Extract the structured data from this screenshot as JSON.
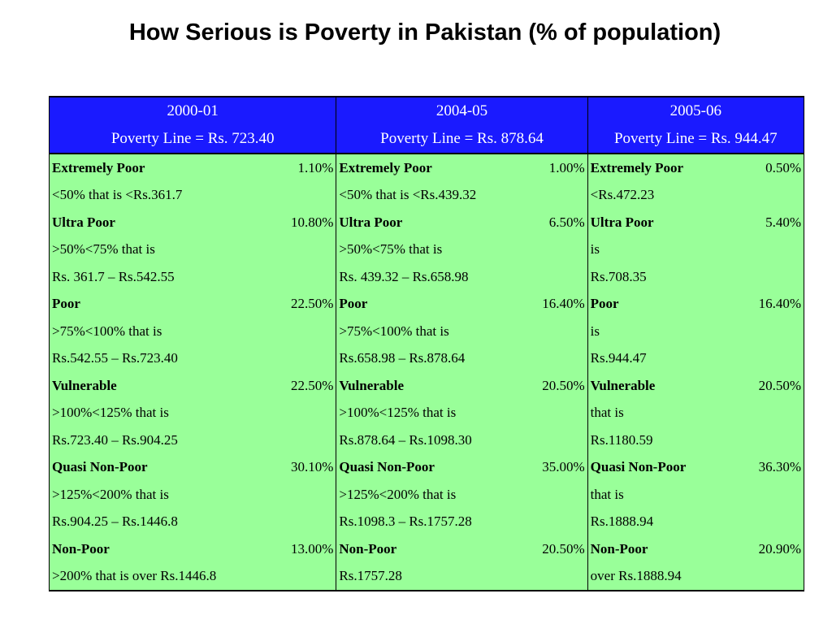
{
  "title": "How Serious is Poverty in Pakistan (% of population)",
  "accent_colors": {
    "header_bg": "#1a1aff",
    "body_bg": "#99ff99"
  },
  "periods": [
    {
      "year": "2000-01",
      "poverty_line": "Poverty Line = Rs. 723.40"
    },
    {
      "year": "2004-05",
      "poverty_line": "Poverty Line = Rs. 878.64"
    },
    {
      "year": "2005-06",
      "poverty_line": "Poverty Line = Rs. 944.47"
    }
  ],
  "rows": [
    {
      "bold": true,
      "cells": [
        {
          "label": "Extremely Poor",
          "pct": "1.10%"
        },
        {
          "label": "Extremely Poor",
          "pct": "1.00%"
        },
        {
          "label": "Extremely Poor",
          "pct": "0.50%"
        }
      ]
    },
    {
      "bold": false,
      "cells": [
        {
          "label": "<50% that is <Rs.361.7",
          "pct": ""
        },
        {
          "label": "<50% that is <Rs.439.32",
          "pct": ""
        },
        {
          "label": "<Rs.472.23",
          "pct": ""
        }
      ]
    },
    {
      "bold": true,
      "cells": [
        {
          "label": "Ultra Poor",
          "pct": "10.80%"
        },
        {
          "label": "Ultra Poor",
          "pct": "6.50%"
        },
        {
          "label": "Ultra Poor",
          "pct": "5.40%"
        }
      ]
    },
    {
      "bold": false,
      "cells": [
        {
          "label": ">50%<75% that is",
          "pct": ""
        },
        {
          "label": ">50%<75% that is",
          "pct": ""
        },
        {
          "label": "is",
          "pct": ""
        }
      ]
    },
    {
      "bold": false,
      "cells": [
        {
          "label": "Rs. 361.7 – Rs.542.55",
          "pct": ""
        },
        {
          "label": "Rs. 439.32 – Rs.658.98",
          "pct": ""
        },
        {
          "label": "Rs.708.35",
          "pct": ""
        }
      ]
    },
    {
      "bold": true,
      "cells": [
        {
          "label": "Poor",
          "pct": "22.50%"
        },
        {
          "label": "Poor",
          "pct": "16.40%"
        },
        {
          "label": "Poor",
          "pct": "16.40%"
        }
      ]
    },
    {
      "bold": false,
      "cells": [
        {
          "label": ">75%<100% that is",
          "pct": ""
        },
        {
          "label": ">75%<100% that is",
          "pct": ""
        },
        {
          "label": "is",
          "pct": ""
        }
      ]
    },
    {
      "bold": false,
      "cells": [
        {
          "label": "Rs.542.55 – Rs.723.40",
          "pct": ""
        },
        {
          "label": "Rs.658.98 – Rs.878.64",
          "pct": ""
        },
        {
          "label": "Rs.944.47",
          "pct": ""
        }
      ]
    },
    {
      "bold": true,
      "cells": [
        {
          "label": "Vulnerable",
          "pct": "22.50%"
        },
        {
          "label": "Vulnerable",
          "pct": "20.50%"
        },
        {
          "label": "Vulnerable",
          "pct": "20.50%"
        }
      ]
    },
    {
      "bold": false,
      "cells": [
        {
          "label": ">100%<125% that is",
          "pct": ""
        },
        {
          "label": ">100%<125% that is",
          "pct": ""
        },
        {
          "label": "that is",
          "pct": ""
        }
      ]
    },
    {
      "bold": false,
      "cells": [
        {
          "label": " Rs.723.40 – Rs.904.25",
          "pct": ""
        },
        {
          "label": "Rs.878.64 – Rs.1098.30",
          "pct": ""
        },
        {
          "label": "Rs.1180.59",
          "pct": ""
        }
      ]
    },
    {
      "bold": true,
      "cells": [
        {
          "label": "Quasi Non-Poor",
          "pct": "30.10%"
        },
        {
          "label": "Quasi Non-Poor",
          "pct": "35.00%"
        },
        {
          "label": "Quasi Non-Poor",
          "pct": "36.30%"
        }
      ]
    },
    {
      "bold": false,
      "cells": [
        {
          "label": ">125%<200% that is",
          "pct": ""
        },
        {
          "label": ">125%<200% that is",
          "pct": ""
        },
        {
          "label": "that is",
          "pct": ""
        }
      ]
    },
    {
      "bold": false,
      "cells": [
        {
          "label": "Rs.904.25 – Rs.1446.8",
          "pct": ""
        },
        {
          "label": "Rs.1098.3 – Rs.1757.28",
          "pct": ""
        },
        {
          "label": "Rs.1888.94",
          "pct": ""
        }
      ]
    },
    {
      "bold": true,
      "cells": [
        {
          "label": "Non-Poor",
          "pct": "13.00%"
        },
        {
          "label": "Non-Poor",
          "pct": "20.50%"
        },
        {
          "label": "Non-Poor",
          "pct": "20.90%"
        }
      ]
    },
    {
      "bold": false,
      "cells": [
        {
          "label": ">200% that is over Rs.1446.8",
          "pct": ""
        },
        {
          "label": "Rs.1757.28",
          "pct": ""
        },
        {
          "label": "over Rs.1888.94",
          "pct": ""
        }
      ]
    }
  ]
}
